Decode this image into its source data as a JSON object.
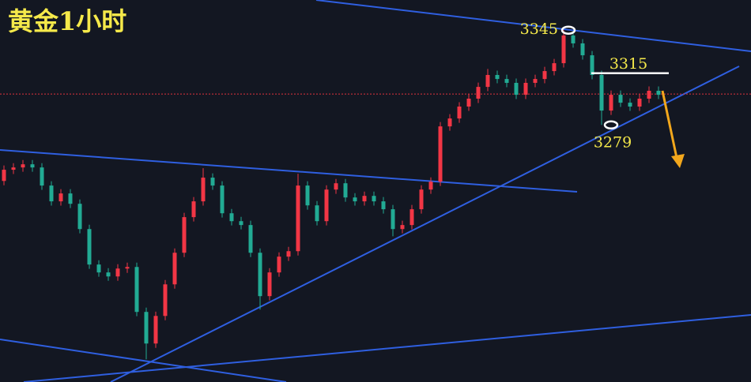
{
  "chart_data": {
    "type": "candlestick",
    "title": "黄金1小时",
    "ylim": [
      3100,
      3366
    ],
    "up_color": "#f23645",
    "down_color": "#22ab94",
    "price_line": 3300.5,
    "price_line_color": "#e0323c",
    "annotations": [
      3345,
      3315,
      3279
    ],
    "open": [
      3240,
      3247.8,
      3249.4,
      3251.6,
      3249.4,
      3236.8,
      3225.8,
      3231.3,
      3224.1,
      3206.5,
      3181.8,
      3176.3,
      3173.5,
      3179,
      3180.1,
      3148.8,
      3126.8,
      3146,
      3168,
      3190,
      3214.8,
      3225.8,
      3242.3,
      3236.8,
      3217.5,
      3212,
      3209.3,
      3190,
      3159.8,
      3176.3,
      3187.3,
      3191.1,
      3236.8,
      3223,
      3212,
      3234,
      3238.4,
      3228.5,
      3225.8,
      3229.6,
      3225.8,
      3220.3,
      3206.5,
      3209.3,
      3220.3,
      3234,
      3239.5,
      3278,
      3283.5,
      3291.8,
      3297.3,
      3305.5,
      3313.8,
      3311,
      3308.3,
      3300,
      3308.3,
      3311,
      3316.5,
      3322,
      3341.3,
      3335.8,
      3327.5,
      3313.8,
      3289,
      3300,
      3294.5,
      3291.8,
      3297.3,
      3302.8
    ],
    "high": [
      3250.8,
      3252.4,
      3254.6,
      3254.6,
      3252.4,
      3239.8,
      3234.3,
      3234.3,
      3227.1,
      3209.5,
      3184.8,
      3179.3,
      3182,
      3183.1,
      3183.1,
      3151.8,
      3149,
      3171,
      3193,
      3217.8,
      3228.8,
      3248.9,
      3245.3,
      3239.8,
      3220.5,
      3215,
      3212.3,
      3193,
      3179.3,
      3190.3,
      3194.1,
      3245,
      3239.8,
      3226,
      3237,
      3241.4,
      3241.4,
      3231.5,
      3232.6,
      3232.6,
      3228.8,
      3223.3,
      3212.3,
      3223.3,
      3237,
      3242.5,
      3281,
      3286.5,
      3294.8,
      3300.3,
      3308.5,
      3318,
      3316.8,
      3314,
      3311.3,
      3311.3,
      3314,
      3319.5,
      3325,
      3345,
      3344.3,
      3338.8,
      3330.5,
      3316.8,
      3303,
      3303,
      3297.5,
      3300.3,
      3305.8,
      3305.8
    ],
    "low": [
      3237,
      3244.8,
      3246.4,
      3246.4,
      3233.8,
      3222.8,
      3222.8,
      3221.1,
      3203.5,
      3178.8,
      3173.3,
      3170.5,
      3170.5,
      3176,
      3145.8,
      3115.8,
      3123.8,
      3143,
      3165,
      3187,
      3211.8,
      3222.8,
      3233.8,
      3214.5,
      3209,
      3206.3,
      3187,
      3150.4,
      3156.8,
      3173.3,
      3184.3,
      3188.1,
      3220,
      3209,
      3209,
      3231,
      3225.5,
      3222.8,
      3222.8,
      3222.8,
      3217.3,
      3201.5,
      3203.5,
      3206.3,
      3217.3,
      3231,
      3236.5,
      3275,
      3280.5,
      3288.8,
      3294.3,
      3302.5,
      3308,
      3305.3,
      3297,
      3297,
      3305.3,
      3308,
      3313.5,
      3319,
      3332.8,
      3324.5,
      3310.8,
      3279,
      3286,
      3291.5,
      3288.8,
      3288.8,
      3294.3,
      3297
    ],
    "close": [
      3247.8,
      3249.4,
      3251.6,
      3249.4,
      3236.8,
      3225.8,
      3231.3,
      3224.1,
      3206.5,
      3181.8,
      3176.3,
      3173.5,
      3179,
      3180.1,
      3148.8,
      3126.8,
      3146,
      3168,
      3190,
      3214.8,
      3225.8,
      3242.3,
      3236.8,
      3217.5,
      3212,
      3209.3,
      3190,
      3159.8,
      3176.3,
      3187.3,
      3191.1,
      3236.8,
      3223,
      3212,
      3234,
      3238.4,
      3228.5,
      3225.8,
      3229.6,
      3225.8,
      3220.3,
      3206.5,
      3209.3,
      3220.3,
      3234,
      3239.5,
      3278,
      3283.5,
      3291.8,
      3297.3,
      3305.5,
      3313.8,
      3311,
      3308.3,
      3300,
      3308.3,
      3311,
      3316.5,
      3322,
      3341.3,
      3335.8,
      3327.5,
      3313.8,
      3289,
      3300,
      3294.5,
      3291.8,
      3297.3,
      3302.8,
      3300
    ]
  }
}
